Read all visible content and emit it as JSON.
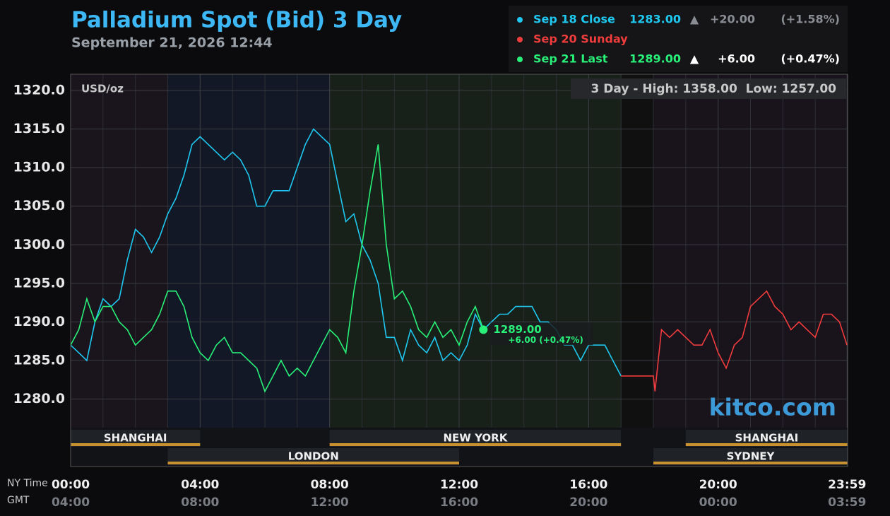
{
  "chart_data": {
    "type": "line",
    "title": "Palladium Spot (Bid) 3 Day",
    "subtitle": "September 21, 2026 12:44",
    "unit_label": "USD/oz",
    "range_note": "3 Day - High: 1358.00  Low: 1257.00",
    "watermark": "kitco.com",
    "x_axis_label": "NY Time",
    "x2_axis_label": "GMT",
    "xlim": [
      0,
      24
    ],
    "xticks": [
      {
        "value": 0,
        "label": "00:00"
      },
      {
        "value": 4,
        "label": "04:00"
      },
      {
        "value": 8,
        "label": "08:00"
      },
      {
        "value": 12,
        "label": "12:00"
      },
      {
        "value": 16,
        "label": "16:00"
      },
      {
        "value": 20,
        "label": "20:00"
      },
      {
        "value": 23.983,
        "label": "23:59"
      }
    ],
    "x2ticks": [
      {
        "value": 0,
        "label": "04:00"
      },
      {
        "value": 4,
        "label": "08:00"
      },
      {
        "value": 8,
        "label": "12:00"
      },
      {
        "value": 12,
        "label": "16:00"
      },
      {
        "value": 16,
        "label": "20:00"
      },
      {
        "value": 20,
        "label": "00:00"
      },
      {
        "value": 23.983,
        "label": "03:59"
      }
    ],
    "ylim": [
      1276.3,
      1322.1
    ],
    "yticks": [
      {
        "value": 1280,
        "label": "1280.0"
      },
      {
        "value": 1285,
        "label": "1285.0"
      },
      {
        "value": 1290,
        "label": "1290.0"
      },
      {
        "value": 1295,
        "label": "1295.0"
      },
      {
        "value": 1300,
        "label": "1300.0"
      },
      {
        "value": 1305,
        "label": "1305.0"
      },
      {
        "value": 1310,
        "label": "1310.0"
      },
      {
        "value": 1315,
        "label": "1315.0"
      },
      {
        "value": 1320,
        "label": "1320.0"
      }
    ],
    "grid": true,
    "series": [
      {
        "name": "Sep 18 Close",
        "color": "#1ec8f0",
        "quote": "1283.00",
        "arrow": "▲",
        "change": "+20.00",
        "change_pct": "(+1.58%)",
        "x": [
          0,
          0.25,
          0.5,
          0.75,
          1,
          1.25,
          1.5,
          1.75,
          2,
          2.25,
          2.5,
          2.75,
          3,
          3.25,
          3.5,
          3.75,
          4,
          4.25,
          4.5,
          4.75,
          5,
          5.25,
          5.5,
          5.75,
          6,
          6.25,
          6.5,
          6.75,
          7,
          7.25,
          7.5,
          7.75,
          8,
          8.25,
          8.5,
          8.75,
          9,
          9.25,
          9.5,
          9.75,
          10,
          10.25,
          10.5,
          10.75,
          11,
          11.25,
          11.5,
          11.75,
          12,
          12.25,
          12.5,
          12.75,
          13,
          13.25,
          13.5,
          13.75,
          14,
          14.25,
          14.5,
          14.75,
          15,
          15.25,
          15.5,
          15.75,
          16,
          16.25,
          16.5,
          16.75,
          17
        ],
        "values": [
          1287,
          1286,
          1285,
          1290,
          1293,
          1292,
          1293,
          1298,
          1302,
          1301,
          1299,
          1301,
          1304,
          1306,
          1309,
          1313,
          1314,
          1313,
          1312,
          1311,
          1312,
          1311,
          1309,
          1305,
          1305,
          1307,
          1307,
          1307,
          1310,
          1313,
          1315,
          1314,
          1313,
          1308,
          1303,
          1304,
          1300,
          1298,
          1295,
          1288,
          1288,
          1285,
          1289,
          1287,
          1286,
          1288,
          1285,
          1286,
          1285,
          1287,
          1291,
          1289,
          1290,
          1291,
          1291,
          1292,
          1292,
          1292,
          1290,
          1290,
          1289,
          1287,
          1287,
          1285,
          1287,
          1287,
          1287,
          1285,
          1283
        ]
      },
      {
        "name": "Sep 20 Sunday",
        "color": "#f03c3c",
        "x": [
          17,
          18,
          18.05,
          18.25,
          18.5,
          18.75,
          19,
          19.25,
          19.5,
          19.75,
          20,
          20.25,
          20.5,
          20.75,
          21,
          21.25,
          21.5,
          21.75,
          22,
          22.25,
          22.5,
          22.75,
          23,
          23.25,
          23.5,
          23.75,
          23.98
        ],
        "values": [
          1283,
          1283,
          1281,
          1289,
          1288,
          1289,
          1288,
          1287,
          1287,
          1289,
          1286,
          1284,
          1287,
          1288,
          1292,
          1293,
          1294,
          1292,
          1291,
          1289,
          1290,
          1289,
          1288,
          1291,
          1291,
          1290,
          1287
        ]
      },
      {
        "name": "Sep 21 Last",
        "color": "#28f078",
        "quote": "1289.00",
        "arrow": "▲",
        "change": "+6.00",
        "change_pct": "(+0.47%)",
        "x": [
          0,
          0.25,
          0.5,
          0.75,
          1,
          1.25,
          1.5,
          1.75,
          2,
          2.25,
          2.5,
          2.75,
          3,
          3.25,
          3.5,
          3.75,
          4,
          4.25,
          4.5,
          4.75,
          5,
          5.25,
          5.5,
          5.75,
          6,
          6.25,
          6.5,
          6.75,
          7,
          7.25,
          7.5,
          7.75,
          8,
          8.25,
          8.5,
          8.75,
          9,
          9.25,
          9.5,
          9.75,
          10,
          10.25,
          10.5,
          10.75,
          11,
          11.25,
          11.5,
          11.75,
          12,
          12.25,
          12.5,
          12.75
        ],
        "values": [
          1287,
          1289,
          1293,
          1290,
          1292,
          1292,
          1290,
          1289,
          1287,
          1288,
          1289,
          1291,
          1294,
          1294,
          1292,
          1288,
          1286,
          1285,
          1287,
          1288,
          1286,
          1286,
          1285,
          1284,
          1281,
          1283,
          1285,
          1283,
          1284,
          1283,
          1285,
          1287,
          1289,
          1288,
          1286,
          1294,
          1300,
          1307,
          1313,
          1300,
          1293,
          1294,
          1292,
          1289,
          1288,
          1290,
          1288,
          1289,
          1287,
          1290,
          1292,
          1289
        ]
      }
    ],
    "marker": {
      "x": 12.75,
      "value": 1289,
      "label": "1289.00",
      "sublabel": "+6.00 (+0.47%)"
    },
    "sessions": [
      {
        "name": "SHANGHAI",
        "start": 0,
        "end": 4,
        "row": 1
      },
      {
        "name": "NEW YORK",
        "start": 8,
        "end": 17,
        "row": 1
      },
      {
        "name": "SHANGHAI",
        "start": 19,
        "end": 24,
        "row": 1
      },
      {
        "name": "LONDON",
        "start": 3,
        "end": 12,
        "row": 2
      },
      {
        "name": "SYDNEY",
        "start": 18,
        "end": 24,
        "row": 2
      }
    ]
  }
}
